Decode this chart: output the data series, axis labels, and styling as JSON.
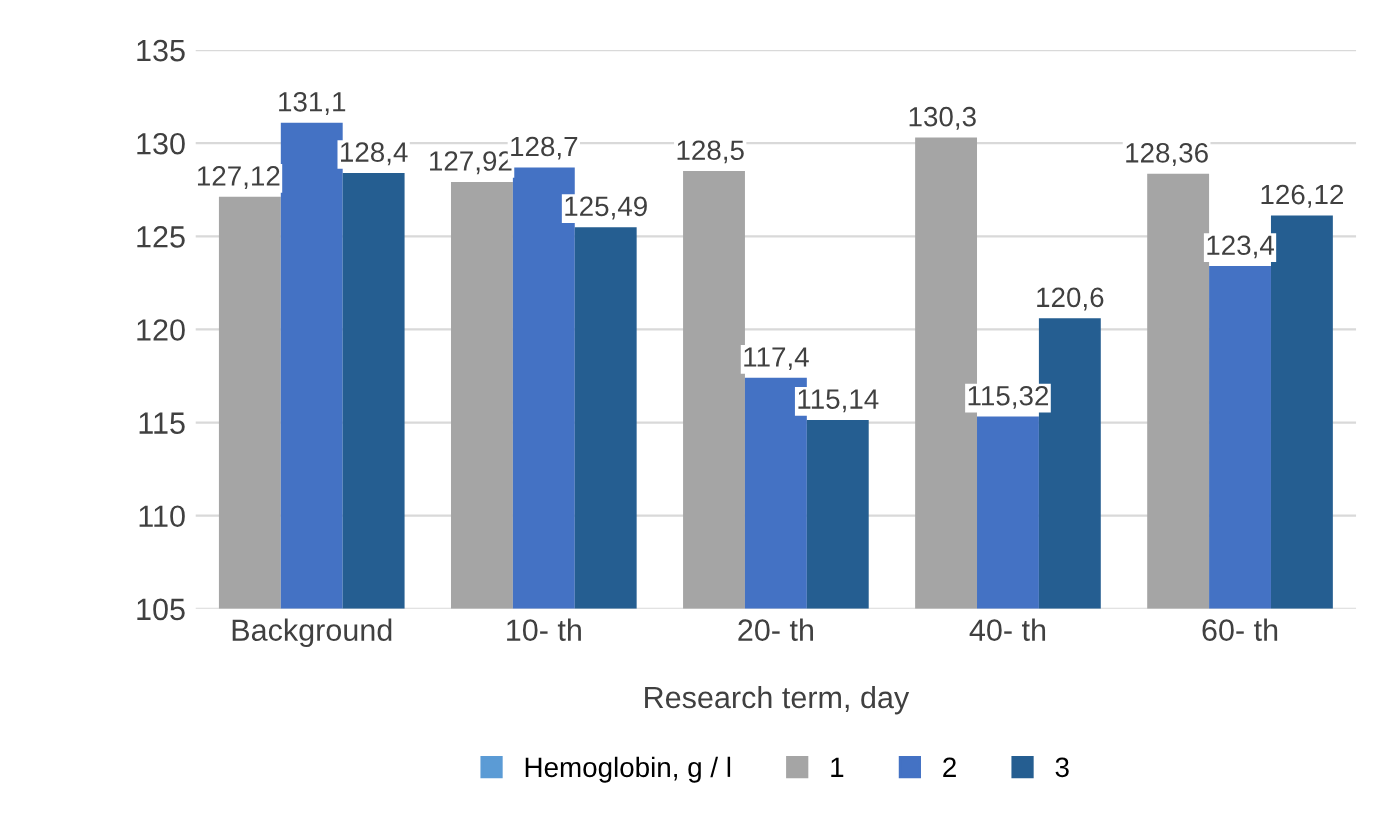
{
  "chart_data": {
    "type": "bar",
    "xlabel": "Research term, day",
    "categories": [
      "Background",
      "10- th",
      "20- th",
      "40- th",
      "60- th"
    ],
    "series": [
      {
        "name": "Hemoglobin, g / l",
        "color": "#5b9bd5",
        "values": [
          null,
          null,
          null,
          null,
          null
        ]
      },
      {
        "name": "1",
        "color": "#a5a5a5",
        "values": [
          127.12,
          127.92,
          128.5,
          130.3,
          128.36
        ],
        "value_labels": [
          "127,12",
          "127,92",
          "128,5",
          "130,3",
          "128,36"
        ]
      },
      {
        "name": "2",
        "color": "#4472c4",
        "values": [
          131.1,
          128.7,
          117.4,
          115.32,
          123.4
        ],
        "value_labels": [
          "131,1",
          "128,7",
          "117,4",
          "115,32",
          "123,4"
        ]
      },
      {
        "name": "3",
        "color": "#255e91",
        "values": [
          128.4,
          125.49,
          115.14,
          120.6,
          126.12
        ],
        "value_labels": [
          "128,4",
          "125,49",
          "115,14",
          "120,6",
          "126,12"
        ]
      }
    ],
    "ylim": [
      105,
      135
    ],
    "yticks": [
      105,
      110,
      115,
      120,
      125,
      130,
      135
    ],
    "grid": "y",
    "legend": "bottom"
  }
}
